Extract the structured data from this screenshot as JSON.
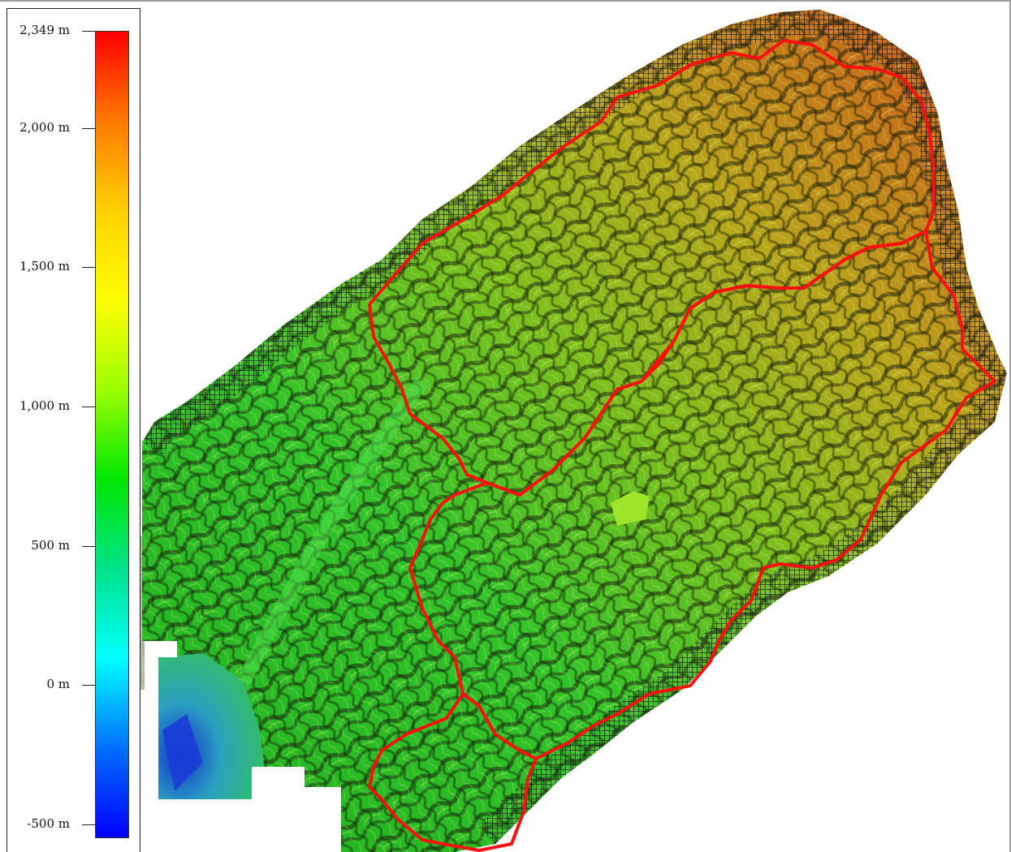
{
  "legend": {
    "ticks": [
      {
        "label": "2,349 m",
        "value": 2349
      },
      {
        "label": "2,000 m",
        "value": 2000
      },
      {
        "label": "1,500 m",
        "value": 1500
      },
      {
        "label": "1,000 m",
        "value": 1000
      },
      {
        "label": "500 m",
        "value": 500
      },
      {
        "label": "0 m",
        "value": 0
      },
      {
        "label": "-500 m",
        "value": -500
      }
    ],
    "min_value": -550,
    "max_value": 2349,
    "gradient_colors": [
      "#ff0000",
      "#ff7a00",
      "#ffd000",
      "#ffff00",
      "#9cff00",
      "#00e600",
      "#00e38a",
      "#00ffff",
      "#0070ff",
      "#0000ff"
    ]
  },
  "map": {
    "watershed_boundary_color": "#ff1010",
    "hatch_color": "#1a1a1a",
    "colors": {
      "lowland": "#2fbf2f",
      "midslope": "#8cc21c",
      "highland": "#c9a21a",
      "peak": "#d0481a",
      "water": "#1a55d6",
      "shadow": "#1c2410"
    }
  }
}
